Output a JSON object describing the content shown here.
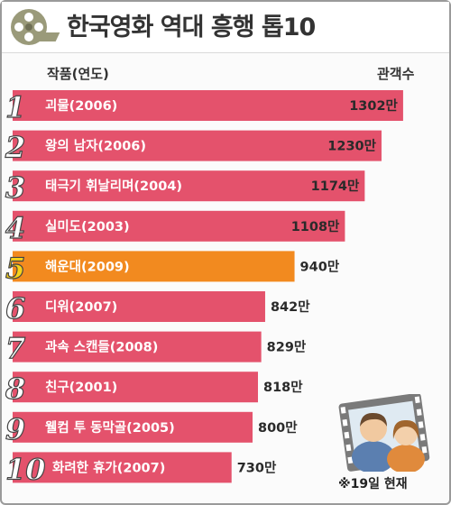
{
  "title": "한국영화 역대 흥행 톱10",
  "header": {
    "col_title": "작품(연도)",
    "col_value": "관객수"
  },
  "footnote": "※19일 현재",
  "colors": {
    "bar": "#e4526c",
    "highlight_bar": "#f28a1f",
    "rank": "#ffffff",
    "highlight_rank": "#f7d21a"
  },
  "icons": {
    "header": "film-reel-icon",
    "corner": "film-frame-people-icon"
  },
  "chart_data": {
    "type": "bar",
    "orientation": "horizontal",
    "unit": "만",
    "highlight_index": 4,
    "ranks": [
      "1",
      "2",
      "3",
      "4",
      "5",
      "6",
      "7",
      "8",
      "9",
      "10"
    ],
    "categories": [
      "괴물(2006)",
      "왕의 남자(2006)",
      "태극기 휘날리며(2004)",
      "실미도(2003)",
      "해운대(2009)",
      "디워(2007)",
      "과속 스캔들(2008)",
      "친구(2001)",
      "웰컴 투 동막골(2005)",
      "화려한 휴가(2007)"
    ],
    "values": [
      1302,
      1230,
      1174,
      1108,
      940,
      842,
      829,
      818,
      800,
      730
    ],
    "value_labels": [
      "1302만",
      "1230만",
      "1174만",
      "1108만",
      "940만",
      "842만",
      "829만",
      "818만",
      "800만",
      "730만"
    ]
  }
}
